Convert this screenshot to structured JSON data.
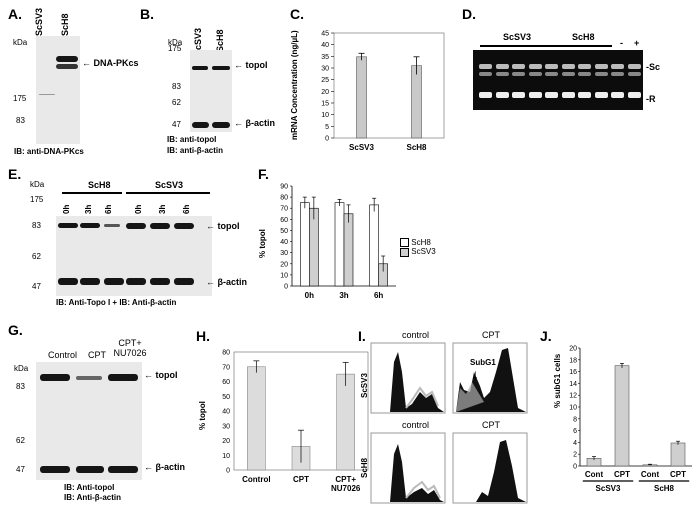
{
  "panels": {
    "A": {
      "label": "A.",
      "samples": [
        "ScSV3",
        "ScH8"
      ],
      "kda_label": "kDa",
      "markers": [
        "175",
        "83"
      ],
      "band_label": "DNA-PKcs",
      "caption": "IB: anti-DNA-PKcs"
    },
    "B": {
      "label": "B.",
      "samples": [
        "ScSV3",
        "ScH8"
      ],
      "kda_label": "kDa",
      "markers": [
        "175",
        "83",
        "62",
        "47"
      ],
      "band_labels": [
        "topoI",
        "β-actin"
      ],
      "caption_1": "IB: anti-topoI",
      "caption_2": "IB: anti-β-actin"
    },
    "C": {
      "label": "C.",
      "ylabel": "mRNA Concentration (ng/µL)",
      "categories": [
        "ScSV3",
        "ScH8"
      ],
      "yticks": [
        "0",
        "5",
        "10",
        "15",
        "20",
        "25",
        "30",
        "35",
        "40",
        "45"
      ]
    },
    "D": {
      "label": "D.",
      "groups": [
        "ScSV3",
        "ScH8"
      ],
      "controls": [
        "-",
        "+"
      ],
      "band_labels": [
        "-Sc",
        "-R"
      ]
    },
    "E": {
      "label": "E.",
      "groups": [
        "ScH8",
        "ScSV3"
      ],
      "times": [
        "0h",
        "3h",
        "6h",
        "0h",
        "3h",
        "6h"
      ],
      "kda_label": "kDa",
      "markers": [
        "175",
        "83",
        "62",
        "47"
      ],
      "band_labels": [
        "topoI",
        "β-actin"
      ],
      "caption": "IB: Anti-Topo I + IB: Anti-β-actin"
    },
    "F": {
      "label": "F.",
      "ylabel": "% topoI",
      "categories": [
        "0h",
        "3h",
        "6h"
      ],
      "yticks": [
        "0",
        "10",
        "20",
        "30",
        "40",
        "50",
        "60",
        "70",
        "80",
        "90"
      ],
      "legend": [
        "ScH8",
        "ScSV3"
      ]
    },
    "G": {
      "label": "G.",
      "lanes": [
        "Control",
        "CPT",
        "CPT+ NU7026"
      ],
      "kda_label": "kDa",
      "markers": [
        "83",
        "62",
        "47"
      ],
      "band_labels": [
        "topoI",
        "β-actin"
      ],
      "caption_1": "IB: Anti-topoI",
      "caption_2": "IB: Anti-β-actin"
    },
    "H": {
      "label": "H.",
      "ylabel": "% topoI",
      "categories": [
        "Control",
        "CPT",
        "CPT+ NU7026"
      ],
      "yticks": [
        "0",
        "10",
        "20",
        "30",
        "40",
        "50",
        "60",
        "70",
        "80"
      ]
    },
    "I": {
      "label": "I.",
      "rows": [
        "ScSV3",
        "ScH8"
      ],
      "columns": [
        "control",
        "CPT"
      ],
      "annotation": "SubG1"
    },
    "J": {
      "label": "J.",
      "ylabel": "% subG1 cells",
      "categories": [
        "Cont",
        "CPT",
        "Cont",
        "CPT"
      ],
      "groups": [
        "ScSV3",
        "ScH8"
      ],
      "yticks": [
        "0",
        "2",
        "4",
        "6",
        "8",
        "10",
        "12",
        "14",
        "16",
        "18",
        "20"
      ]
    }
  },
  "chart_data": [
    {
      "panel": "C",
      "type": "bar",
      "categories": [
        "ScSV3",
        "ScH8"
      ],
      "values": [
        34.8,
        31
      ],
      "errors": [
        1.5,
        3.8
      ],
      "ylabel": "mRNA Concentration (ng/µL)",
      "ylim": [
        0,
        45
      ]
    },
    {
      "panel": "F",
      "type": "bar",
      "categories": [
        "0h",
        "3h",
        "6h"
      ],
      "series": [
        {
          "name": "ScH8",
          "values": [
            75,
            75,
            73
          ],
          "errors": [
            5,
            3,
            6
          ]
        },
        {
          "name": "ScSV3",
          "values": [
            70,
            65,
            20
          ],
          "errors": [
            10,
            8,
            7
          ]
        }
      ],
      "ylabel": "% topoI",
      "ylim": [
        0,
        90
      ],
      "legend": "right"
    },
    {
      "panel": "H",
      "type": "bar",
      "categories": [
        "Control",
        "CPT",
        "CPT+ NU7026"
      ],
      "values": [
        70,
        16,
        65
      ],
      "errors": [
        4,
        11,
        8
      ],
      "ylabel": "% topoI",
      "ylim": [
        0,
        80
      ]
    },
    {
      "panel": "J",
      "type": "bar",
      "categories": [
        "Cont",
        "CPT",
        "Cont",
        "CPT"
      ],
      "groups": [
        "ScSV3",
        "ScSV3",
        "ScH8",
        "ScH8"
      ],
      "values": [
        1.3,
        17,
        0.2,
        3.9
      ],
      "errors": [
        0.3,
        0.4,
        0.1,
        0.3
      ],
      "ylabel": "% subG1 cells",
      "ylim": [
        0,
        20
      ]
    }
  ]
}
